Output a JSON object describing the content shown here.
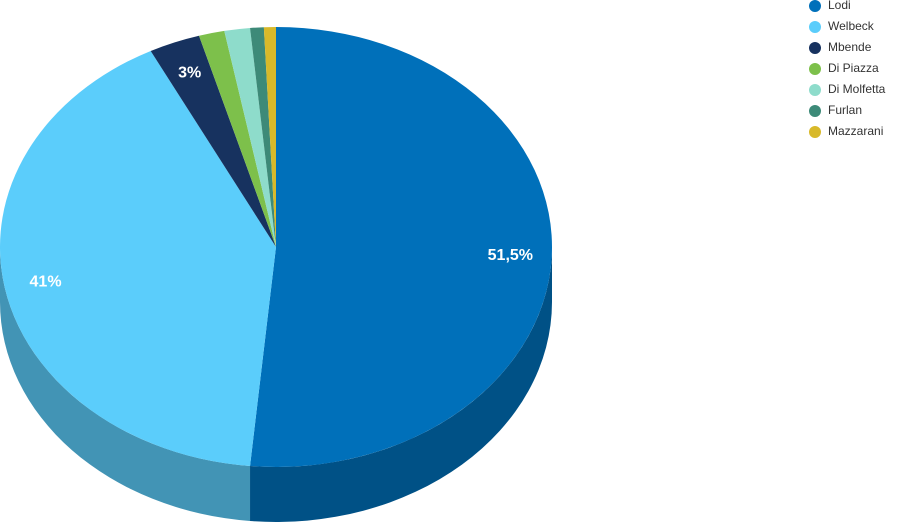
{
  "chart_data": {
    "type": "pie",
    "categories": [
      "Lodi",
      "Welbeck",
      "Mbende",
      "Di Piazza",
      "Di Molfetta",
      "Furlan",
      "Mazzarani"
    ],
    "values": [
      51.5,
      41,
      3,
      1.5,
      1.5,
      0.8,
      0.7
    ],
    "value_labels": [
      "51,5%",
      "41%",
      "3%",
      null,
      null,
      null,
      null
    ],
    "colors": [
      "#0070ba",
      "#5bcdfb",
      "#17325f",
      "#7dc04b",
      "#8edccb",
      "#3d8a78",
      "#d8b92a"
    ],
    "legend": "top-right"
  }
}
